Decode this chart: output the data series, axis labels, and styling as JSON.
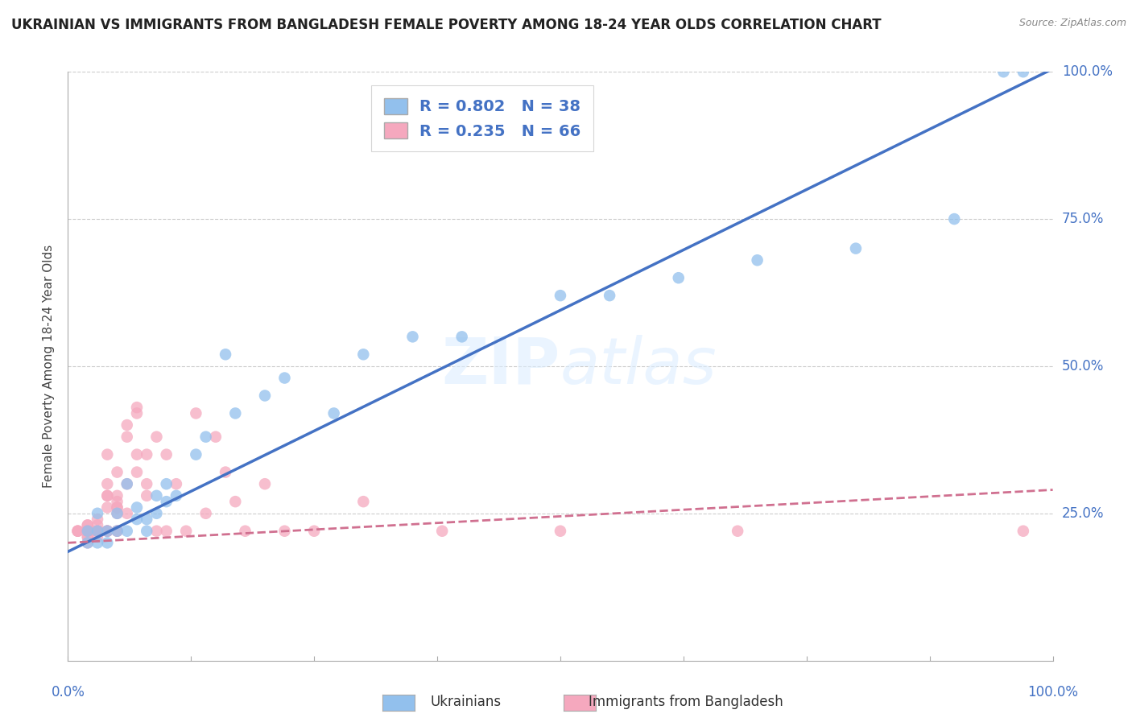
{
  "title": "UKRAINIAN VS IMMIGRANTS FROM BANGLADESH FEMALE POVERTY AMONG 18-24 YEAR OLDS CORRELATION CHART",
  "source": "Source: ZipAtlas.com",
  "ylabel": "Female Poverty Among 18-24 Year Olds",
  "xlim": [
    0,
    1
  ],
  "ylim": [
    0,
    1
  ],
  "yticks": [
    0.0,
    0.25,
    0.5,
    0.75,
    1.0
  ],
  "ytick_labels": [
    "",
    "25.0%",
    "50.0%",
    "75.0%",
    "100.0%"
  ],
  "watermark_zip": "ZIP",
  "watermark_atlas": "atlas",
  "legend_r_blue": "R = 0.802",
  "legend_n_blue": "N = 38",
  "legend_r_pink": "R = 0.235",
  "legend_n_pink": "N = 66",
  "blue_color": "#92C0ED",
  "pink_color": "#F5A8BE",
  "blue_line_color": "#4472C4",
  "pink_line_color": "#D07090",
  "blue_intercept": 0.185,
  "blue_slope": 0.82,
  "pink_intercept": 0.2,
  "pink_slope": 0.09,
  "ukrainians_x": [
    0.02,
    0.02,
    0.03,
    0.03,
    0.03,
    0.04,
    0.04,
    0.05,
    0.05,
    0.06,
    0.06,
    0.07,
    0.07,
    0.08,
    0.08,
    0.09,
    0.09,
    0.1,
    0.1,
    0.11,
    0.13,
    0.14,
    0.16,
    0.17,
    0.2,
    0.22,
    0.27,
    0.3,
    0.35,
    0.4,
    0.5,
    0.55,
    0.62,
    0.7,
    0.8,
    0.9,
    0.95,
    0.97
  ],
  "ukrainians_y": [
    0.2,
    0.22,
    0.22,
    0.25,
    0.2,
    0.22,
    0.2,
    0.25,
    0.22,
    0.3,
    0.22,
    0.26,
    0.24,
    0.22,
    0.24,
    0.28,
    0.25,
    0.27,
    0.3,
    0.28,
    0.35,
    0.38,
    0.52,
    0.42,
    0.45,
    0.48,
    0.42,
    0.52,
    0.55,
    0.55,
    0.62,
    0.62,
    0.65,
    0.68,
    0.7,
    0.75,
    1.0,
    1.0
  ],
  "bangladesh_x": [
    0.01,
    0.01,
    0.01,
    0.02,
    0.02,
    0.02,
    0.02,
    0.02,
    0.02,
    0.02,
    0.02,
    0.03,
    0.03,
    0.03,
    0.03,
    0.03,
    0.03,
    0.03,
    0.04,
    0.04,
    0.04,
    0.04,
    0.04,
    0.04,
    0.04,
    0.04,
    0.04,
    0.05,
    0.05,
    0.05,
    0.05,
    0.05,
    0.05,
    0.05,
    0.05,
    0.06,
    0.06,
    0.06,
    0.06,
    0.07,
    0.07,
    0.07,
    0.07,
    0.08,
    0.08,
    0.08,
    0.09,
    0.09,
    0.1,
    0.1,
    0.11,
    0.12,
    0.13,
    0.14,
    0.15,
    0.16,
    0.17,
    0.18,
    0.2,
    0.22,
    0.25,
    0.3,
    0.38,
    0.5,
    0.68,
    0.97
  ],
  "bangladesh_y": [
    0.22,
    0.22,
    0.22,
    0.22,
    0.23,
    0.22,
    0.21,
    0.23,
    0.2,
    0.21,
    0.22,
    0.22,
    0.22,
    0.22,
    0.23,
    0.21,
    0.24,
    0.22,
    0.22,
    0.22,
    0.22,
    0.22,
    0.28,
    0.26,
    0.28,
    0.3,
    0.35,
    0.22,
    0.26,
    0.25,
    0.32,
    0.22,
    0.28,
    0.27,
    0.26,
    0.3,
    0.38,
    0.4,
    0.25,
    0.42,
    0.43,
    0.35,
    0.32,
    0.28,
    0.35,
    0.3,
    0.38,
    0.22,
    0.35,
    0.22,
    0.3,
    0.22,
    0.42,
    0.25,
    0.38,
    0.32,
    0.27,
    0.22,
    0.3,
    0.22,
    0.22,
    0.27,
    0.22,
    0.22,
    0.22,
    0.22
  ]
}
